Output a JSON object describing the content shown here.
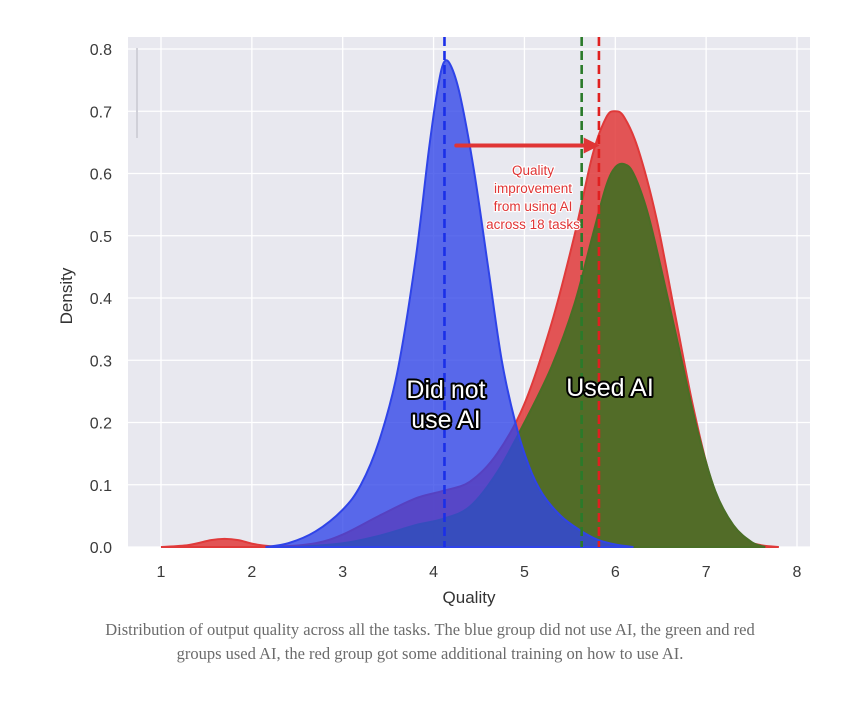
{
  "chart_data": {
    "type": "area",
    "title": "",
    "xlabel": "Quality",
    "ylabel": "Density",
    "xlim": [
      0.65,
      8.15
    ],
    "ylim": [
      0,
      0.82
    ],
    "xticks": [
      1,
      2,
      3,
      4,
      5,
      6,
      7,
      8
    ],
    "yticks": [
      0.0,
      0.1,
      0.2,
      0.3,
      0.4,
      0.5,
      0.6,
      0.7,
      0.8
    ],
    "xtick_labels": [
      "1",
      "2",
      "3",
      "4",
      "5",
      "6",
      "7",
      "8"
    ],
    "ytick_labels": [
      "0.0",
      "0.1",
      "0.2",
      "0.3",
      "0.4",
      "0.5",
      "0.6",
      "0.7",
      "0.8"
    ],
    "grid": true,
    "background": "#e8e8ef",
    "series": [
      {
        "name": "Red group (AI + training)",
        "color": "#e03a3a",
        "mean": 5.82,
        "points": [
          [
            1.0,
            0.0
          ],
          [
            1.3,
            0.003
          ],
          [
            1.55,
            0.011
          ],
          [
            1.7,
            0.013
          ],
          [
            1.85,
            0.011
          ],
          [
            2.05,
            0.004
          ],
          [
            2.3,
            0.001
          ],
          [
            2.7,
            0.006
          ],
          [
            3.0,
            0.02
          ],
          [
            3.4,
            0.05
          ],
          [
            3.8,
            0.078
          ],
          [
            4.1,
            0.09
          ],
          [
            4.4,
            0.105
          ],
          [
            4.7,
            0.15
          ],
          [
            5.0,
            0.23
          ],
          [
            5.3,
            0.36
          ],
          [
            5.55,
            0.5
          ],
          [
            5.75,
            0.63
          ],
          [
            5.9,
            0.69
          ],
          [
            6.0,
            0.7
          ],
          [
            6.1,
            0.69
          ],
          [
            6.25,
            0.64
          ],
          [
            6.45,
            0.53
          ],
          [
            6.65,
            0.38
          ],
          [
            6.85,
            0.23
          ],
          [
            7.05,
            0.11
          ],
          [
            7.25,
            0.045
          ],
          [
            7.45,
            0.012
          ],
          [
            7.6,
            0.003
          ],
          [
            7.8,
            0.0
          ]
        ]
      },
      {
        "name": "Green group (AI)",
        "color": "#4a6e26",
        "mean": 5.63,
        "points": [
          [
            2.5,
            0.0
          ],
          [
            3.0,
            0.006
          ],
          [
            3.4,
            0.018
          ],
          [
            3.8,
            0.035
          ],
          [
            4.1,
            0.045
          ],
          [
            4.4,
            0.065
          ],
          [
            4.7,
            0.12
          ],
          [
            5.0,
            0.2
          ],
          [
            5.3,
            0.29
          ],
          [
            5.55,
            0.39
          ],
          [
            5.75,
            0.5
          ],
          [
            5.9,
            0.58
          ],
          [
            6.0,
            0.61
          ],
          [
            6.1,
            0.615
          ],
          [
            6.2,
            0.6
          ],
          [
            6.35,
            0.54
          ],
          [
            6.5,
            0.45
          ],
          [
            6.7,
            0.32
          ],
          [
            6.9,
            0.19
          ],
          [
            7.1,
            0.09
          ],
          [
            7.3,
            0.035
          ],
          [
            7.5,
            0.008
          ],
          [
            7.65,
            0.0
          ]
        ]
      },
      {
        "name": "Blue group (no AI)",
        "color": "#2f44e8",
        "mean": 4.12,
        "points": [
          [
            2.15,
            0.0
          ],
          [
            2.4,
            0.006
          ],
          [
            2.7,
            0.025
          ],
          [
            3.0,
            0.06
          ],
          [
            3.2,
            0.1
          ],
          [
            3.4,
            0.17
          ],
          [
            3.6,
            0.28
          ],
          [
            3.8,
            0.46
          ],
          [
            3.95,
            0.64
          ],
          [
            4.05,
            0.74
          ],
          [
            4.12,
            0.78
          ],
          [
            4.2,
            0.77
          ],
          [
            4.3,
            0.72
          ],
          [
            4.45,
            0.6
          ],
          [
            4.6,
            0.45
          ],
          [
            4.75,
            0.3
          ],
          [
            4.9,
            0.2
          ],
          [
            5.05,
            0.13
          ],
          [
            5.2,
            0.085
          ],
          [
            5.4,
            0.05
          ],
          [
            5.6,
            0.028
          ],
          [
            5.8,
            0.012
          ],
          [
            6.0,
            0.004
          ],
          [
            6.2,
            0.0
          ]
        ]
      }
    ],
    "annotations": [
      {
        "text_lines": [
          "Quality",
          "improvement",
          "from using AI",
          "across 18 tasks"
        ],
        "color": "#e03535",
        "arrow_from_x": 4.25,
        "arrow_to_x": 5.85,
        "arrow_y": 0.645
      },
      {
        "text_lines": [
          "Did not",
          "use AI"
        ],
        "x": 4.12,
        "y": 0.24
      },
      {
        "text_lines": [
          "Used AI"
        ],
        "x": 5.95,
        "y": 0.255
      }
    ]
  },
  "caption": "Distribution of output quality across all the tasks. The blue group did not use AI, the green and red groups used AI, the red group got some additional training on how to use AI."
}
